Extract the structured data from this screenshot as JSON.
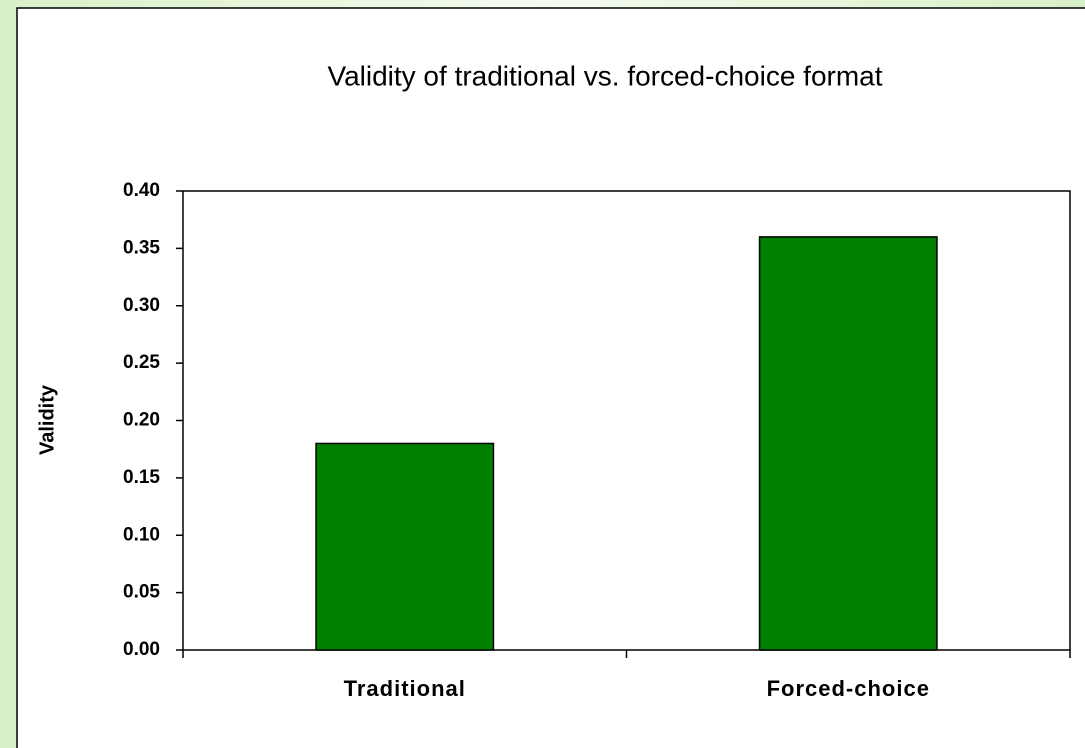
{
  "chart_data": {
    "type": "bar",
    "title": "Validity of traditional vs. forced-choice format",
    "y_label": "Validity",
    "categories": [
      "Traditional",
      "Forced-choice"
    ],
    "values": [
      0.18,
      0.36
    ],
    "color": "#008000",
    "ylim": [
      0,
      0.4
    ],
    "yticks": [
      {
        "value": 0,
        "label": "0.00"
      },
      {
        "value": 0.05,
        "label": "0.05"
      },
      {
        "value": 0.1,
        "label": "0.10"
      },
      {
        "value": 0.15,
        "label": "0.15"
      },
      {
        "value": 0.2,
        "label": "0.20"
      },
      {
        "value": 0.25,
        "label": "0.25"
      },
      {
        "value": 0.3,
        "label": "0.30"
      },
      {
        "value": 0.35,
        "label": "0.35"
      },
      {
        "value": 0.4,
        "label": "0.40"
      }
    ],
    "grid": false
  }
}
